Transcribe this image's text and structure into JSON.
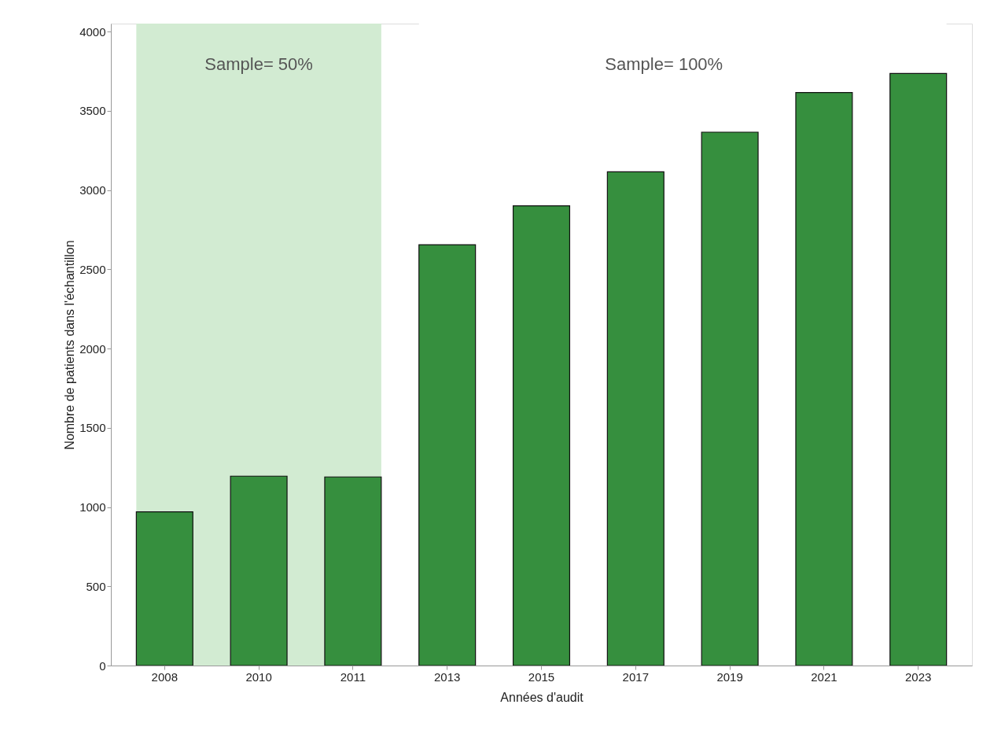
{
  "chart_data": {
    "type": "bar",
    "xlabel": "Années d'audit",
    "ylabel": "Nombre de patients dans l'échantillon",
    "categories": [
      "2008",
      "2010",
      "2011",
      "2013",
      "2015",
      "2017",
      "2019",
      "2021",
      "2023"
    ],
    "values": [
      970,
      1195,
      1190,
      2655,
      2900,
      3115,
      3365,
      3615,
      3735
    ],
    "color": "#368f3e",
    "ylim": [
      0,
      4050
    ],
    "yticks": [
      0,
      500,
      1000,
      1500,
      2000,
      2500,
      3000,
      3500,
      4000
    ],
    "bands": [
      {
        "axis": "x",
        "from": "2008",
        "to": "2011",
        "label": "Sample= 50%",
        "color": "#d2ebd2"
      },
      {
        "axis": "x",
        "from": "2013",
        "to": "2023",
        "label": "Sample= 100%",
        "color": "#ffffff"
      }
    ],
    "grid": false
  }
}
